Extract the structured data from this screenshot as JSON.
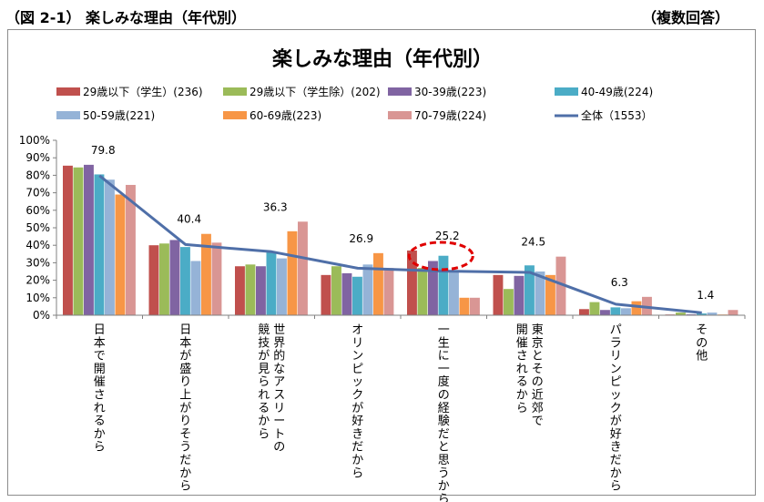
{
  "page": {
    "heading": "（図 2-1）  楽しみな理由（年代別）",
    "note": "（複数回答）"
  },
  "chart_data": {
    "type": "bar",
    "title": "楽しみな理由（年代別）",
    "ylim": [
      0,
      100
    ],
    "yticks": [
      "0%",
      "10%",
      "20%",
      "30%",
      "40%",
      "50%",
      "60%",
      "70%",
      "80%",
      "90%",
      "100%"
    ],
    "grid": false,
    "legend_position": "top",
    "categories": [
      "日本で開催されるから",
      "日本が盛り上がりそうだから",
      "世界的なアスリートの競技が見られるから",
      "オリンピックが好きだから",
      "一生に一度の経験だと思うから",
      "東京とその近郊で開催されるから",
      "パラリンピックが好きだから",
      "その他"
    ],
    "series": [
      {
        "name": "29歳以下（学生）(236)",
        "color": "#C0504D",
        "values": [
          85.5,
          40,
          28,
          23,
          37,
          23,
          3.5,
          0.4
        ]
      },
      {
        "name": "29歳以下（学生除）(202)",
        "color": "#9BBB59",
        "values": [
          84.5,
          41,
          29,
          28,
          27,
          15,
          7.5,
          1.5
        ]
      },
      {
        "name": "30-39歳(223)",
        "color": "#8064A2",
        "values": [
          86,
          43,
          28,
          24,
          31,
          22.5,
          3,
          0.5
        ]
      },
      {
        "name": "40-49歳(224)",
        "color": "#4BACC6",
        "values": [
          80.5,
          39,
          36,
          22,
          34,
          28.5,
          4.5,
          1
        ]
      },
      {
        "name": "50-59歳(221)",
        "color": "#95B3D7",
        "values": [
          77.5,
          31,
          32.5,
          29,
          25,
          25,
          4,
          1.5
        ]
      },
      {
        "name": "60-69歳(223)",
        "color": "#F79646",
        "values": [
          69,
          46.5,
          48,
          35.5,
          10,
          23,
          8,
          0.4
        ]
      },
      {
        "name": "70-79歳(224)",
        "color": "#D99694",
        "values": [
          74.5,
          41.5,
          53.5,
          27,
          10,
          33.5,
          10.5,
          3
        ]
      }
    ],
    "line_series": {
      "name": "全体（1553）",
      "color": "#4F6FA8",
      "values": [
        79.8,
        40.4,
        36.3,
        26.9,
        25.2,
        24.5,
        6.3,
        1.4
      ],
      "labels": [
        "79.8",
        "40.4",
        "36.3",
        "26.9",
        "25.2",
        "24.5",
        "6.3",
        "1.4"
      ]
    },
    "annotation": {
      "type": "dashed-ellipse",
      "color": "#E00000",
      "category_index": 4
    }
  }
}
